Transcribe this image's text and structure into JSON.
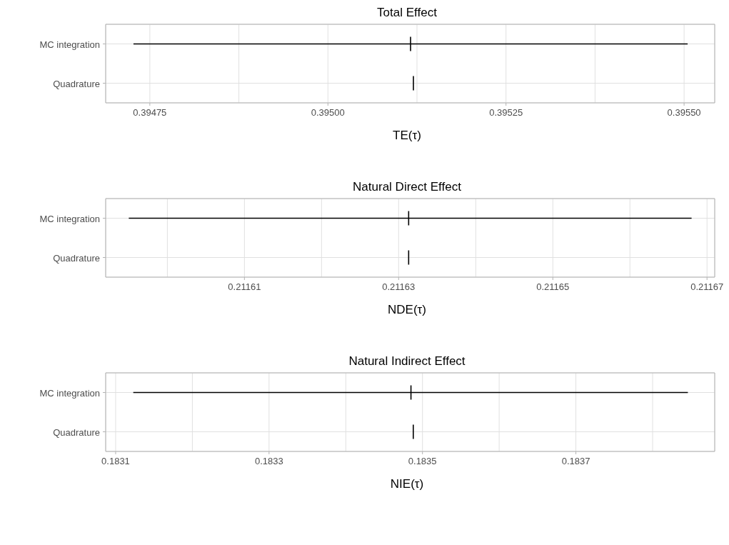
{
  "chart_data": [
    {
      "type": "scatter",
      "title": "Total Effect",
      "xlabel": "TE(τ)",
      "orientation": "horizontal",
      "categories": [
        "MC integration",
        "Quadrature"
      ],
      "grid": true,
      "series": [
        {
          "color": "#000000",
          "values": [
            0.395116,
            0.39512
          ],
          "errors": [
            [
              0.394727,
              0.395505
            ],
            null
          ]
        }
      ],
      "xlim": [
        0.394688,
        0.395543
      ],
      "xticks": [
        0.39475,
        {
          "value": 0.394875,
          "label": null
        },
        {
          "value": 0.395,
          "label": "0.39500"
        },
        {
          "value": 0.395125,
          "label": null
        },
        0.39525,
        {
          "value": 0.395375,
          "label": null
        },
        {
          "value": 0.3955,
          "label": "0.39550"
        }
      ]
    },
    {
      "type": "scatter",
      "title": "Natural Direct Effect",
      "xlabel": "NDE(τ)",
      "orientation": "horizontal",
      "categories": [
        "MC integration",
        "Quadrature"
      ],
      "grid": true,
      "series": [
        {
          "color": "#000000",
          "values": [
            0.2116313,
            0.2116313
          ],
          "errors": [
            [
              0.211595,
              0.211668
            ],
            null
          ]
        }
      ],
      "xlim": [
        0.211592,
        0.211671
      ],
      "xticks": [
        {
          "value": 0.2116,
          "label": null
        },
        0.21161,
        {
          "value": 0.21162,
          "label": null
        },
        0.21163,
        {
          "value": 0.21164,
          "label": null
        },
        0.21165,
        {
          "value": 0.21166,
          "label": null
        },
        0.21167
      ]
    },
    {
      "type": "scatter",
      "title": "Natural Indirect Effect",
      "xlabel": "NIE(τ)",
      "orientation": "horizontal",
      "categories": [
        "MC integration",
        "Quadrature"
      ],
      "grid": true,
      "series": [
        {
          "color": "#000000",
          "values": [
            0.183485,
            0.183488
          ],
          "errors": [
            [
              0.183123,
              0.183846
            ],
            null
          ]
        }
      ],
      "xlim": [
        0.183087,
        0.183881
      ],
      "xticks": [
        0.1831,
        {
          "value": 0.1832,
          "label": null
        },
        0.1833,
        {
          "value": 0.1834,
          "label": null
        },
        0.1835,
        {
          "value": 0.1836,
          "label": null
        },
        0.1837,
        {
          "value": 0.1838,
          "label": null
        }
      ]
    }
  ]
}
